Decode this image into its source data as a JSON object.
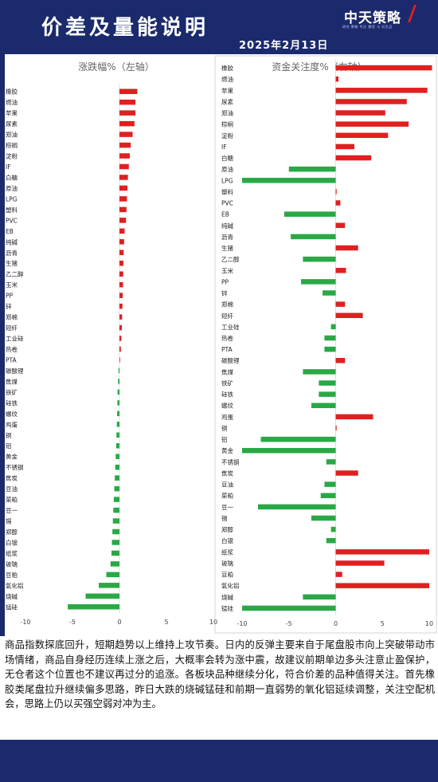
{
  "header": {
    "title": "价差及量能说明",
    "date": "2025年2月13日",
    "logo": "中天策略",
    "logo_sub": "研究 策略  专注 期货 与 衍生品"
  },
  "colors": {
    "header_bg": "#1a2a6c",
    "up": "#e02020",
    "down": "#2aa845"
  },
  "chart_data": [
    {
      "type": "bar",
      "orientation": "horizontal",
      "title": "涨跌幅%（左轴）",
      "xlim": [
        -10,
        10
      ],
      "xticks": [
        "-10",
        "-5",
        "0",
        "5",
        "10"
      ],
      "categories": [
        "橡胶",
        "燃油",
        "苹果",
        "尿素",
        "郑油",
        "棕榈",
        "淀粉",
        "IF",
        "白糖",
        "原油",
        "LPG",
        "塑料",
        "PVC",
        "EB",
        "纯碱",
        "沥青",
        "生猪",
        "乙二醇",
        "玉米",
        "PP",
        "锌",
        "郑棉",
        "短纤",
        "工业硅",
        "热卷",
        "PTA",
        "碳酸锂",
        "焦煤",
        "铁矿",
        "硅铁",
        "螺纹",
        "鸡蛋",
        "铜",
        "铝",
        "黄金",
        "不锈钢",
        "焦炭",
        "豆油",
        "菜粕",
        "豆一",
        "锡",
        "郑醇",
        "白银",
        "纸浆",
        "玻璃",
        "豆粕",
        "氧化铝",
        "烧碱",
        "锰硅"
      ],
      "values": [
        1.9,
        1.7,
        1.7,
        1.6,
        1.4,
        1.2,
        1.1,
        1.0,
        0.9,
        0.85,
        0.8,
        0.75,
        0.7,
        0.55,
        0.5,
        0.45,
        0.42,
        0.4,
        0.38,
        0.35,
        0.32,
        0.28,
        0.25,
        0.2,
        0.15,
        0.05,
        -0.1,
        -0.15,
        -0.2,
        -0.22,
        -0.25,
        -0.28,
        -0.32,
        -0.35,
        -0.4,
        -0.45,
        -0.5,
        -0.55,
        -0.6,
        -0.65,
        -0.7,
        -0.75,
        -0.8,
        -0.85,
        -0.95,
        -1.4,
        -2.2,
        -3.6,
        -5.5
      ]
    },
    {
      "type": "bar",
      "orientation": "horizontal",
      "title": "资金关注度%（右轴）",
      "xlim": [
        -10,
        10
      ],
      "xticks": [
        "-10",
        "-5",
        "0",
        "5",
        "10"
      ],
      "categories": [
        "橡胶",
        "燃油",
        "苹果",
        "尿素",
        "郑油",
        "棕榈",
        "淀粉",
        "IF",
        "白糖",
        "原油",
        "LPG",
        "塑料",
        "PVC",
        "EB",
        "纯碱",
        "沥青",
        "生猪",
        "乙二醇",
        "玉米",
        "PP",
        "锌",
        "郑棉",
        "短纤",
        "工业硅",
        "热卷",
        "PTA",
        "碳酸锂",
        "焦煤",
        "铁矿",
        "硅铁",
        "螺纹",
        "鸡蛋",
        "铜",
        "铝",
        "黄金",
        "不锈钢",
        "焦炭",
        "豆油",
        "菜粕",
        "豆一",
        "锡",
        "郑醇",
        "白银",
        "纸浆",
        "玻璃",
        "豆粕",
        "氧化铝",
        "烧碱",
        "锰硅"
      ],
      "values": [
        10.3,
        0.3,
        9.8,
        7.6,
        5.3,
        7.8,
        5.6,
        2.0,
        3.8,
        -5.0,
        -10.0,
        0.1,
        0.5,
        -5.5,
        1.0,
        -4.8,
        2.4,
        -3.5,
        1.1,
        -3.7,
        -1.4,
        1.0,
        2.9,
        -0.5,
        -1.2,
        -1.2,
        1.0,
        -3.5,
        -1.8,
        -1.8,
        -2.6,
        4.0,
        0.1,
        -8.0,
        -10.0,
        -1.0,
        2.4,
        -1.2,
        -1.6,
        -8.3,
        -2.6,
        -0.5,
        -1.0,
        10.0,
        5.2,
        0.7,
        10.0,
        -3.5,
        -10.0
      ]
    }
  ],
  "commentary": "商品指数探底回升，短期趋势以上维持上攻节奏。日内的反弹主要来自于尾盘股市向上突破带动市场情绪，商品自身经历连续上涨之后，大概率会转为涨中震，故建议前期单边多头注意止盈保护，无仓者这个位置也不建议再过分的追涨。各板块品种继续分化，符合价差的品种值得关注。首先橡胶类尾盘拉升继续偏多思路，昨日大跌的烧碱锰硅和前期一直弱势的氧化铝延续调整，关注空配机会，思路上仍以买强空弱对冲为主。"
}
